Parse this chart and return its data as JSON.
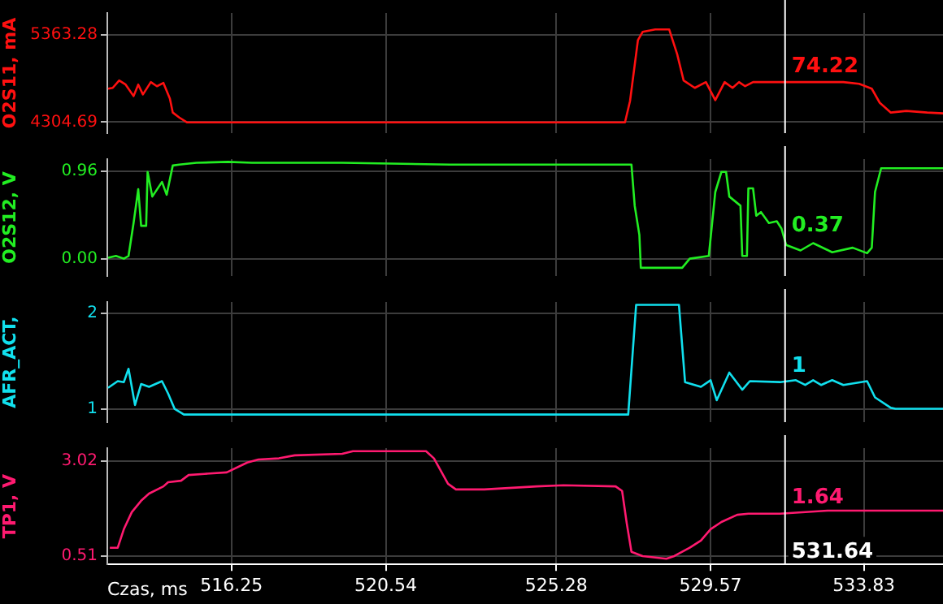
{
  "chart_data": [
    {
      "type": "line",
      "ylabel": "O2S11, mA",
      "color": "#ff1010",
      "marker": "none",
      "grid": true,
      "tick_labels": "y",
      "xlim": [
        512.8,
        536.03
      ],
      "xticks": [
        516.25,
        520.54,
        525.28,
        529.57,
        533.83
      ],
      "ylim": [
        4170,
        5630
      ],
      "yticks": [
        4304.69,
        5363.28
      ],
      "annotations": [
        "74.22"
      ],
      "ref_lines": [
        {
          "axis": "x",
          "value": 531.64,
          "color": "#ffffff"
        }
      ],
      "x": [
        512.82,
        512.95,
        513.13,
        513.31,
        513.53,
        513.66,
        513.79,
        514.01,
        514.18,
        514.36,
        514.54,
        514.62,
        514.8,
        515.02,
        527.19,
        527.33,
        527.55,
        527.68,
        528.03,
        528.42,
        528.64,
        528.82,
        529.13,
        529.44,
        529.7,
        529.96,
        530.18,
        530.36,
        530.53,
        530.75,
        531.5,
        533.26,
        533.7,
        534.05,
        534.27,
        534.58,
        535.01,
        535.59,
        536.03
      ],
      "values": [
        4710,
        4720,
        4810,
        4760,
        4620,
        4760,
        4640,
        4790,
        4740,
        4780,
        4590,
        4420,
        4360,
        4300,
        4300,
        4560,
        5300,
        5400,
        5430,
        5430,
        5130,
        4810,
        4720,
        4790,
        4570,
        4790,
        4720,
        4790,
        4740,
        4790,
        4790,
        4790,
        4770,
        4710,
        4540,
        4420,
        4440,
        4420,
        4410
      ]
    },
    {
      "type": "line",
      "ylabel": "O2S12, V",
      "color": "#22ee22",
      "marker": "none",
      "grid": true,
      "tick_labels": "y",
      "xlim": [
        512.8,
        536.03
      ],
      "xticks": [
        516.25,
        520.54,
        525.28,
        529.57,
        533.83
      ],
      "ylim": [
        -0.19,
        1.09
      ],
      "yticks": [
        {
          "value": 0,
          "label": "0.00"
        },
        0.96
      ],
      "annotations": [
        "0.37"
      ],
      "ref_lines": [
        {
          "axis": "x",
          "value": 531.64,
          "color": "#ffffff"
        }
      ],
      "x": [
        512.82,
        513.04,
        513.26,
        513.39,
        513.53,
        513.66,
        513.74,
        513.88,
        513.92,
        514.05,
        514.32,
        514.45,
        514.62,
        514.8,
        515.28,
        516.16,
        516.82,
        519.33,
        522.32,
        527.37,
        527.46,
        527.59,
        527.63,
        528.78,
        528.99,
        529.52,
        529.7,
        529.87,
        530.0,
        530.09,
        530.4,
        530.45,
        530.58,
        530.62,
        530.75,
        530.84,
        530.97,
        531.19,
        531.41,
        531.54,
        531.67,
        532.07,
        532.42,
        532.95,
        533.52,
        533.92,
        534.05,
        534.14,
        534.31,
        536.03
      ],
      "values": [
        0.01,
        0.03,
        0,
        0.03,
        0.39,
        0.76,
        0.36,
        0.36,
        0.95,
        0.68,
        0.84,
        0.7,
        1.02,
        1.03,
        1.05,
        1.06,
        1.05,
        1.05,
        1.03,
        1.03,
        0.58,
        0.26,
        -0.1,
        -0.1,
        0,
        0.03,
        0.73,
        0.95,
        0.95,
        0.68,
        0.58,
        0.03,
        0.03,
        0.77,
        0.77,
        0.47,
        0.51,
        0.39,
        0.41,
        0.33,
        0.15,
        0.09,
        0.17,
        0.07,
        0.12,
        0.06,
        0.12,
        0.73,
        0.99,
        0.99
      ]
    },
    {
      "type": "line",
      "ylabel": "AFR_ACT,",
      "color": "#11e0ee",
      "marker": "none",
      "grid": true,
      "tick_labels": "y",
      "xlim": [
        512.8,
        536.03
      ],
      "xticks": [
        516.25,
        520.54,
        525.28,
        529.57,
        533.83
      ],
      "ylim": [
        0.86,
        2.12
      ],
      "yticks": [
        1,
        2
      ],
      "annotations": [
        "1"
      ],
      "ref_lines": [
        {
          "axis": "x",
          "value": 531.64,
          "color": "#ffffff"
        }
      ],
      "x": [
        512.82,
        513.09,
        513.26,
        513.39,
        513.57,
        513.74,
        513.96,
        514.32,
        514.49,
        514.67,
        514.93,
        527.28,
        527.5,
        528.69,
        528.86,
        529.3,
        529.57,
        529.74,
        530.09,
        530.45,
        530.66,
        531.5,
        531.94,
        532.2,
        532.42,
        532.64,
        532.95,
        533.26,
        533.92,
        534.14,
        534.58,
        534.71,
        536.03
      ],
      "values": [
        1.22,
        1.29,
        1.28,
        1.42,
        1.04,
        1.26,
        1.23,
        1.29,
        1.16,
        1.0,
        0.94,
        0.94,
        2.09,
        2.09,
        1.28,
        1.23,
        1.3,
        1.09,
        1.38,
        1.2,
        1.29,
        1.28,
        1.3,
        1.25,
        1.3,
        1.25,
        1.3,
        1.25,
        1.29,
        1.12,
        1.01,
        1.0,
        1.0
      ]
    },
    {
      "type": "line",
      "ylabel": "TP1, V",
      "xlabel": "Czas, ms",
      "color": "#ff1a70",
      "marker": "none",
      "grid": true,
      "xlim": [
        512.8,
        536.03
      ],
      "xticks": [
        516.25,
        520.54,
        525.28,
        529.57,
        533.83
      ],
      "ylim": [
        0.29,
        3.36
      ],
      "yticks": [
        0.51,
        3.02
      ],
      "annotations": [
        "1.64"
      ],
      "ref_lines": [
        {
          "axis": "x",
          "value": 531.64,
          "color": "#ffffff",
          "label": "531.64"
        }
      ],
      "x": [
        512.87,
        513.09,
        513.26,
        513.48,
        513.74,
        513.96,
        514.36,
        514.49,
        514.85,
        515.06,
        515.5,
        516.12,
        516.69,
        517.0,
        517.57,
        518.01,
        519.33,
        519.63,
        521.66,
        521.88,
        522.27,
        522.49,
        523.28,
        524.73,
        525.48,
        526.93,
        527.11,
        527.24,
        527.37,
        527.68,
        528.34,
        528.56,
        528.99,
        529.3,
        529.57,
        529.87,
        530.31,
        530.62,
        531.5,
        532.82,
        536.03
      ],
      "values": [
        0.73,
        0.73,
        1.22,
        1.67,
        1.97,
        2.16,
        2.35,
        2.46,
        2.5,
        2.65,
        2.68,
        2.72,
        2.98,
        3.06,
        3.09,
        3.17,
        3.21,
        3.28,
        3.28,
        3.09,
        2.42,
        2.27,
        2.27,
        2.35,
        2.38,
        2.35,
        2.23,
        1.37,
        0.62,
        0.51,
        0.44,
        0.51,
        0.73,
        0.92,
        1.22,
        1.41,
        1.6,
        1.63,
        1.63,
        1.71,
        1.71
      ]
    }
  ]
}
